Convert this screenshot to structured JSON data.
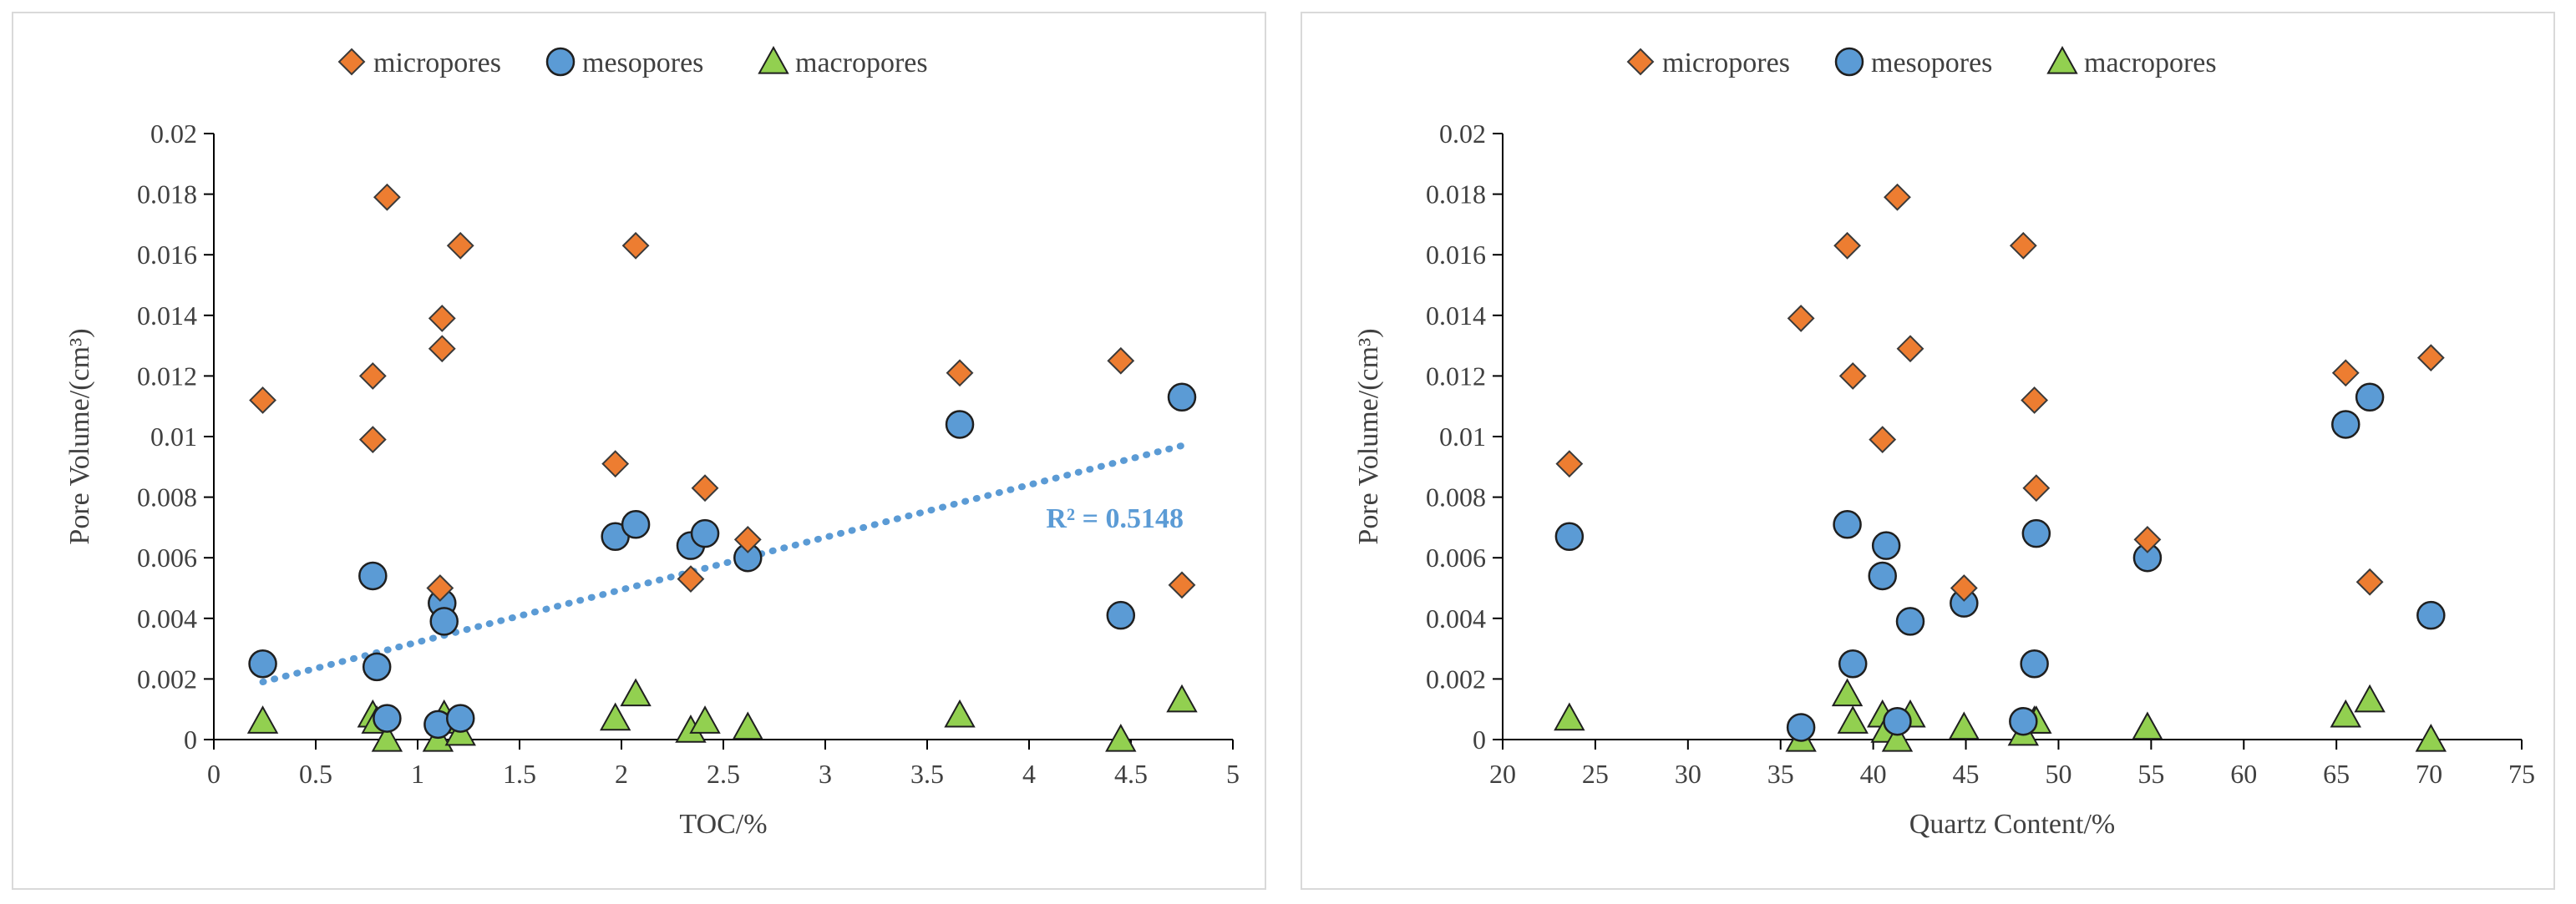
{
  "colors": {
    "micropores": "#ed7d31",
    "mesopores": "#5b9bd5",
    "macropores": "#92d050",
    "trendline": "#5b9bd5",
    "axis": "#000000",
    "text": "#404040"
  },
  "chart_data": [
    {
      "type": "scatter",
      "xlabel": "TOC/%",
      "ylabel": "Pore Volume/(cm³)",
      "xlim": [
        0,
        5
      ],
      "ylim": [
        0,
        0.02
      ],
      "x_ticks": [
        "0",
        "0.5",
        "1",
        "1.5",
        "2",
        "2.5",
        "3",
        "3.5",
        "4",
        "4.5",
        "5"
      ],
      "y_ticks": [
        "0",
        "0.002",
        "0.004",
        "0.006",
        "0.008",
        "0.01",
        "0.012",
        "0.014",
        "0.016",
        "0.018",
        "0.02"
      ],
      "legend": [
        "micropores",
        "mesopores",
        "macropores"
      ],
      "legend_position": "top",
      "trendline": {
        "series": "mesopores",
        "type": "linear",
        "x_range": [
          0.24,
          4.75
        ],
        "y_range": [
          0.0019,
          0.0097
        ],
        "label": "R² = 0.5148"
      },
      "series": [
        {
          "name": "micropores",
          "marker": "diamond",
          "x": [
            0.24,
            0.78,
            0.78,
            0.85,
            1.11,
            1.12,
            1.12,
            1.21,
            1.97,
            2.07,
            2.34,
            2.41,
            2.62,
            3.66,
            4.45,
            4.75
          ],
          "y": [
            0.0112,
            0.0099,
            0.012,
            0.0179,
            0.005,
            0.0139,
            0.0129,
            0.0163,
            0.0091,
            0.0163,
            0.0053,
            0.0083,
            0.0066,
            0.0121,
            0.0125,
            0.0051
          ]
        },
        {
          "name": "mesopores",
          "marker": "circle",
          "x": [
            0.24,
            0.78,
            0.8,
            0.85,
            1.1,
            1.12,
            1.13,
            1.21,
            1.97,
            2.07,
            2.34,
            2.41,
            2.62,
            3.66,
            4.45,
            4.75
          ],
          "y": [
            0.0025,
            0.0054,
            0.0024,
            0.0007,
            0.0005,
            0.0045,
            0.0039,
            0.0007,
            0.0067,
            0.0071,
            0.0064,
            0.0068,
            0.006,
            0.0104,
            0.0041,
            0.0113
          ]
        },
        {
          "name": "macropores",
          "marker": "triangle",
          "x": [
            0.24,
            0.78,
            0.8,
            0.85,
            1.1,
            1.12,
            1.13,
            1.21,
            1.97,
            2.07,
            2.34,
            2.41,
            2.62,
            3.66,
            4.45,
            4.75
          ],
          "y": [
            0.0006,
            0.0008,
            0.0006,
            0.0,
            0.0,
            0.0006,
            0.0008,
            0.0002,
            0.0007,
            0.0015,
            0.0003,
            0.0006,
            0.0004,
            0.0008,
            0.0,
            0.0013
          ]
        }
      ]
    },
    {
      "type": "scatter",
      "xlabel": "Quartz Content/%",
      "ylabel": "Pore Volume/(cm³)",
      "xlim": [
        20,
        75
      ],
      "ylim": [
        0,
        0.02
      ],
      "x_ticks": [
        "20",
        "25",
        "30",
        "35",
        "40",
        "45",
        "50",
        "55",
        "60",
        "65",
        "70",
        "75"
      ],
      "y_ticks": [
        "0",
        "0.002",
        "0.004",
        "0.006",
        "0.008",
        "0.01",
        "0.012",
        "0.014",
        "0.016",
        "0.018",
        "0.02"
      ],
      "legend": [
        "micropores",
        "mesopores",
        "macropores"
      ],
      "legend_position": "top",
      "series": [
        {
          "name": "micropores",
          "marker": "diamond",
          "x": [
            23.6,
            36.1,
            38.6,
            38.9,
            40.5,
            41.3,
            42.0,
            44.9,
            48.1,
            48.7,
            48.8,
            54.8,
            65.5,
            66.8,
            70.1
          ],
          "y": [
            0.0091,
            0.0139,
            0.0163,
            0.012,
            0.0099,
            0.0179,
            0.0129,
            0.005,
            0.0163,
            0.0112,
            0.0083,
            0.0066,
            0.0121,
            0.0052,
            0.0126
          ]
        },
        {
          "name": "mesopores",
          "marker": "circle",
          "x": [
            23.6,
            36.1,
            38.6,
            38.9,
            40.5,
            40.7,
            41.3,
            42.0,
            44.9,
            48.1,
            48.7,
            48.8,
            54.8,
            65.5,
            66.8,
            70.1
          ],
          "y": [
            0.0067,
            0.0004,
            0.0071,
            0.0025,
            0.0054,
            0.0064,
            0.0006,
            0.0039,
            0.0045,
            0.0006,
            0.0025,
            0.0068,
            0.006,
            0.0104,
            0.0113,
            0.0041
          ]
        },
        {
          "name": "macropores",
          "marker": "triangle",
          "x": [
            23.6,
            36.1,
            38.6,
            38.9,
            40.5,
            40.7,
            41.3,
            42.0,
            44.9,
            48.1,
            48.7,
            48.8,
            54.8,
            65.5,
            66.8,
            70.1
          ],
          "y": [
            0.0007,
            0.0,
            0.0015,
            0.0006,
            0.0008,
            0.0003,
            0.0,
            0.0008,
            0.0004,
            0.0002,
            0.0006,
            0.0006,
            0.0004,
            0.0008,
            0.0013,
            0.0
          ]
        }
      ]
    }
  ]
}
